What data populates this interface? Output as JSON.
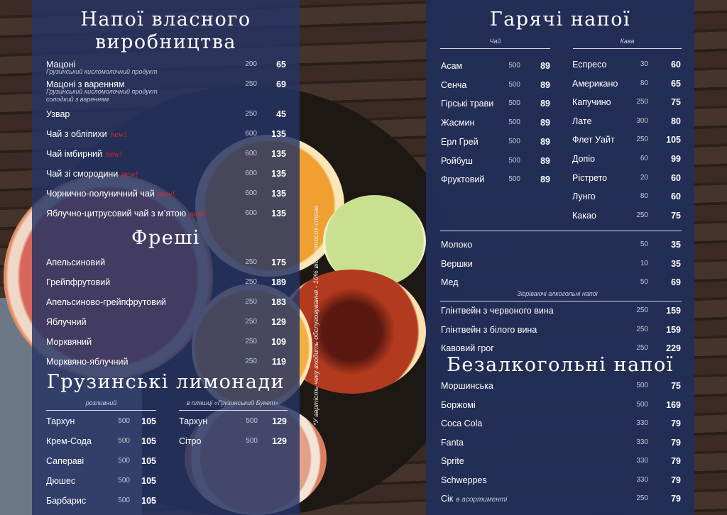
{
  "left": {
    "title_line1": "Напої власного",
    "title_line2": "виробництва",
    "new_badge": "new!",
    "items": [
      {
        "name": "Мацоні",
        "desc": "Грузинський кисломолочний продукт",
        "volume": "200",
        "price": "65"
      },
      {
        "name": "Мацоні з варенням",
        "desc": "Грузинський кисломолочний продукт солодкий з варенням",
        "volume": "250",
        "price": "69"
      },
      {
        "name": "Узвар",
        "volume": "250",
        "price": "45"
      },
      {
        "name": "Чай з обліпихи",
        "is_new": true,
        "volume": "600",
        "price": "135"
      },
      {
        "name": "Чай імбирний",
        "is_new": true,
        "volume": "600",
        "price": "135"
      },
      {
        "name": "Чай зі смородини",
        "is_new": true,
        "volume": "600",
        "price": "135"
      },
      {
        "name": "Чорнично-полуничний чай",
        "is_new": true,
        "volume": "600",
        "price": "135"
      },
      {
        "name": "Яблучно-цитрусовий чай з м’ятою",
        "is_new": true,
        "volume": "600",
        "price": "135"
      }
    ]
  },
  "fresh": {
    "title": "Фреші",
    "items": [
      {
        "name": "Апельсиновий",
        "volume": "250",
        "price": "175"
      },
      {
        "name": "Грейпфрутовий",
        "volume": "250",
        "price": "189"
      },
      {
        "name": "Апельсиново-грейпфрутовий",
        "volume": "250",
        "price": "183"
      },
      {
        "name": "Яблучний",
        "volume": "250",
        "price": "129"
      },
      {
        "name": "Морквяний",
        "volume": "250",
        "price": "109"
      },
      {
        "name": "Морквяно-яблучний",
        "volume": "250",
        "price": "119"
      }
    ]
  },
  "lemonades": {
    "title": "Грузинські лимонади",
    "draft_label": "розливний",
    "bottle_label": "в пляшці «Грузинський Букет»",
    "draft": [
      {
        "name": "Тархун",
        "volume": "500",
        "price": "105"
      },
      {
        "name": "Крем-Сода",
        "volume": "500",
        "price": "105"
      },
      {
        "name": "Сапераві",
        "volume": "500",
        "price": "105"
      },
      {
        "name": "Дюшес",
        "volume": "500",
        "price": "105"
      },
      {
        "name": "Барбарис",
        "volume": "500",
        "price": "105"
      }
    ],
    "bottle": [
      {
        "name": "Тархун",
        "volume": "500",
        "price": "129"
      },
      {
        "name": "Сітро",
        "volume": "500",
        "price": "129"
      }
    ]
  },
  "footnote": "*У вартість чеку входить обслуговування - 10% від вартості страв",
  "hot": {
    "title": "Гарячі напої",
    "tea_label": "Чай",
    "coffee_label": "Кава",
    "tea": [
      {
        "name": "Асам",
        "volume": "500",
        "price": "89"
      },
      {
        "name": "Сенча",
        "volume": "500",
        "price": "89"
      },
      {
        "name": "Гірські трави",
        "volume": "500",
        "price": "89"
      },
      {
        "name": "Жасмин",
        "volume": "500",
        "price": "89"
      },
      {
        "name": "Ерл Грей",
        "volume": "500",
        "price": "89"
      },
      {
        "name": "Ройбуш",
        "volume": "500",
        "price": "89"
      },
      {
        "name": "Фруктовий",
        "volume": "500",
        "price": "89"
      }
    ],
    "coffee": [
      {
        "name": "Еспресо",
        "volume": "30",
        "price": "60"
      },
      {
        "name": "Американо",
        "volume": "80",
        "price": "65"
      },
      {
        "name": "Капучино",
        "volume": "250",
        "price": "75"
      },
      {
        "name": "Лате",
        "volume": "300",
        "price": "80"
      },
      {
        "name": "Флет Уайт",
        "volume": "250",
        "price": "105"
      },
      {
        "name": "Допіо",
        "volume": "60",
        "price": "99"
      },
      {
        "name": "Рістрето",
        "volume": "20",
        "price": "60"
      },
      {
        "name": "Лунго",
        "volume": "80",
        "price": "60"
      },
      {
        "name": "Какао",
        "volume": "250",
        "price": "75"
      }
    ],
    "extras": [
      {
        "name": "Молоко",
        "volume": "50",
        "price": "35"
      },
      {
        "name": "Вершки",
        "volume": "10",
        "price": "35"
      },
      {
        "name": "Мед",
        "volume": "50",
        "price": "69"
      }
    ],
    "alcohol_label": "Зігріваючі алкогольні напої",
    "alcohol": [
      {
        "name": "Глінтвейн з червоного вина",
        "volume": "250",
        "price": "159"
      },
      {
        "name": "Глінтвейн з білого вина",
        "volume": "250",
        "price": "159"
      },
      {
        "name": "Кавовий грог",
        "volume": "250",
        "price": "229"
      }
    ]
  },
  "soft": {
    "title": "Безалкогольні напої",
    "items": [
      {
        "name": "Моршинська",
        "volume": "500",
        "price": "75"
      },
      {
        "name": "Боржомі",
        "volume": "500",
        "price": "169"
      },
      {
        "name": "Coca Cola",
        "volume": "330",
        "price": "79"
      },
      {
        "name": "Fanta",
        "volume": "330",
        "price": "79"
      },
      {
        "name": "Sprite",
        "volume": "330",
        "price": "79"
      },
      {
        "name": "Schweppes",
        "volume": "330",
        "price": "79"
      },
      {
        "name": "Сік",
        "suffix": "в асортименті",
        "volume": "250",
        "price": "79"
      }
    ]
  },
  "colors": {
    "panel": "#26346a",
    "new_badge": "#e2252b",
    "wood": "#3b2b24"
  }
}
